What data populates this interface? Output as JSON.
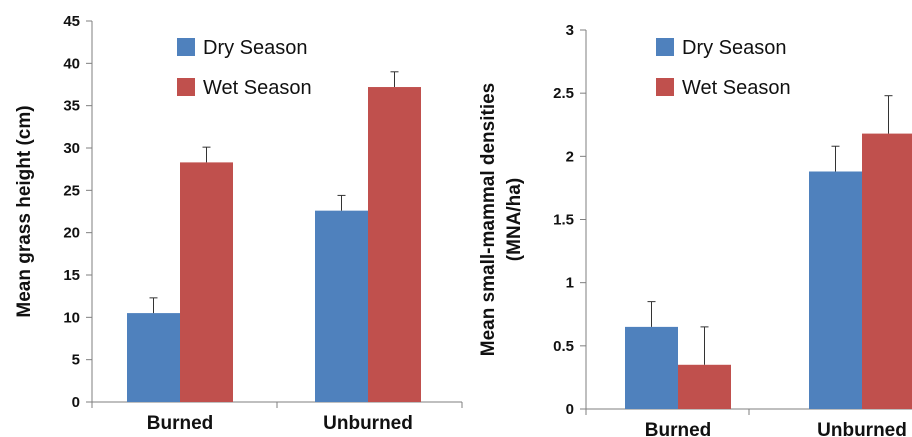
{
  "colors": {
    "dry": "#4F81BD",
    "wet": "#C0504D",
    "axis": "#7f7f7f"
  },
  "chart_data": [
    {
      "type": "bar",
      "categories": [
        "Burned",
        "Unburned"
      ],
      "series": [
        {
          "name": "Dry Season",
          "values": [
            10.5,
            22.6
          ],
          "error": [
            1.8,
            1.8
          ]
        },
        {
          "name": "Wet Season",
          "values": [
            28.3,
            37.2
          ],
          "error": [
            1.8,
            1.8
          ]
        }
      ],
      "ylabel": "Mean grass height (cm)",
      "ylim": [
        0,
        45
      ],
      "yticks": [
        "0",
        "5",
        "10",
        "15",
        "20",
        "25",
        "30",
        "35",
        "40",
        "45"
      ],
      "legend": "top-center"
    },
    {
      "type": "bar",
      "categories": [
        "Burned",
        "Unburned"
      ],
      "series": [
        {
          "name": "Dry Season",
          "values": [
            0.65,
            1.88
          ],
          "error": [
            0.2,
            0.2
          ]
        },
        {
          "name": "Wet Season",
          "values": [
            0.35,
            2.18
          ],
          "error": [
            0.3,
            0.3
          ]
        }
      ],
      "ylabel": [
        "Mean small-mammal densities",
        "(MNA/ha)"
      ],
      "ylim": [
        0,
        3
      ],
      "yticks": [
        "0",
        "0.5",
        "1",
        "1.5",
        "2",
        "2.5",
        "3"
      ],
      "legend": "top-center"
    }
  ]
}
